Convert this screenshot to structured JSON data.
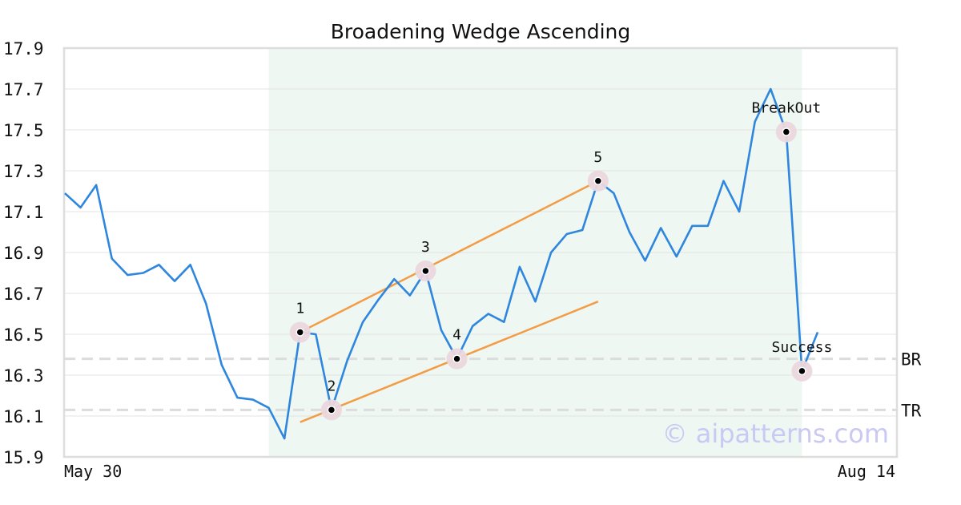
{
  "chart_data": {
    "type": "line",
    "title": "Broadening Wedge Ascending",
    "xlabel": "",
    "ylabel": "",
    "x_tick_labels": [
      "May 30",
      "Aug 14"
    ],
    "y_ticks": [
      "15.9",
      "16.1",
      "16.3",
      "16.5",
      "16.7",
      "16.9",
      "17.1",
      "17.3",
      "17.5",
      "17.7",
      "17.9"
    ],
    "ylim": [
      15.9,
      17.9
    ],
    "grid": true,
    "series": [
      {
        "color": "#2e86de",
        "values": [
          17.19,
          17.12,
          17.23,
          16.87,
          16.79,
          16.8,
          16.84,
          16.76,
          16.84,
          16.65,
          16.35,
          16.19,
          16.18,
          16.14,
          15.99,
          16.51,
          16.5,
          16.13,
          16.37,
          16.56,
          16.67,
          16.77,
          16.69,
          16.81,
          16.52,
          16.38,
          16.54,
          16.6,
          16.56,
          16.83,
          16.66,
          16.9,
          16.99,
          17.01,
          17.25,
          17.19,
          17.0,
          16.86,
          17.02,
          16.88,
          17.03,
          17.03,
          17.25,
          17.1,
          17.54,
          17.7,
          17.49,
          16.32,
          16.51
        ]
      }
    ],
    "pattern_region": {
      "start_index": 13,
      "end_index": 47,
      "color": "#eef7f2"
    },
    "wedge_lines": [
      {
        "name": "upper",
        "color": "#f39c45",
        "from": {
          "x": 15,
          "y": 16.51
        },
        "to": {
          "x": 34,
          "y": 17.25
        }
      },
      {
        "name": "lower",
        "color": "#f39c45",
        "from": {
          "x": 15,
          "y": 16.07
        },
        "to": {
          "x": 34,
          "y": 16.66
        }
      }
    ],
    "reference_lines": [
      {
        "label": "BR",
        "y": 16.38
      },
      {
        "label": "TR",
        "y": 16.13
      }
    ],
    "points": [
      {
        "label": "1",
        "x": 15,
        "y": 16.51
      },
      {
        "label": "2",
        "x": 17,
        "y": 16.13
      },
      {
        "label": "3",
        "x": 23,
        "y": 16.81
      },
      {
        "label": "4",
        "x": 25,
        "y": 16.38
      },
      {
        "label": "5",
        "x": 34,
        "y": 17.25
      },
      {
        "label": "BreakOut",
        "x": 46,
        "y": 17.49
      },
      {
        "label": "Success",
        "x": 47,
        "y": 16.32
      }
    ],
    "watermark": "© aipatterns.com"
  }
}
